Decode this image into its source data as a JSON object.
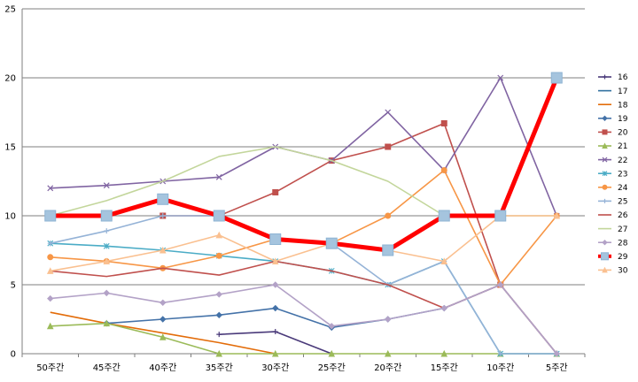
{
  "chart_data": {
    "type": "line",
    "categories": [
      "50주간",
      "45주간",
      "40주간",
      "35주간",
      "30주간",
      "25주간",
      "20주간",
      "15주간",
      "10주간",
      "5주간"
    ],
    "ylim": [
      0,
      25
    ],
    "yticks": [
      "0",
      "5",
      "10",
      "15",
      "20",
      "25"
    ],
    "grid": "horizontal",
    "legend_position": "right",
    "series": [
      {
        "name": "16",
        "color": "#4a3a7a",
        "marker": "plus",
        "values": [
          null,
          null,
          null,
          1.4,
          1.6,
          0,
          null,
          null,
          null,
          null
        ]
      },
      {
        "name": "17",
        "color": "#2f6f9f",
        "marker": "none",
        "values": [
          null,
          null,
          null,
          null,
          null,
          null,
          null,
          null,
          null,
          null
        ]
      },
      {
        "name": "18",
        "color": "#e36c09",
        "marker": "none",
        "values": [
          3.0,
          2.2,
          1.5,
          0.8,
          0,
          null,
          null,
          null,
          null,
          null
        ]
      },
      {
        "name": "19",
        "color": "#4472a8",
        "marker": "diamond",
        "values": [
          null,
          2.2,
          2.5,
          2.8,
          3.3,
          1.9,
          2.5,
          3.3,
          5.0,
          0
        ]
      },
      {
        "name": "20",
        "color": "#c0504d",
        "marker": "square",
        "values": [
          null,
          null,
          10.0,
          10.0,
          11.7,
          14.0,
          15.0,
          16.7,
          5.0,
          null
        ]
      },
      {
        "name": "21",
        "color": "#9bbb59",
        "marker": "triangle",
        "values": [
          2.0,
          2.2,
          1.2,
          0,
          0,
          0,
          0,
          0,
          0,
          0
        ]
      },
      {
        "name": "22",
        "color": "#8064a2",
        "marker": "x",
        "values": [
          12.0,
          12.2,
          12.5,
          12.8,
          15.0,
          14.0,
          17.5,
          13.3,
          20.0,
          10.0
        ]
      },
      {
        "name": "23",
        "color": "#4bacc6",
        "marker": "star",
        "values": [
          8.0,
          7.8,
          7.5,
          7.1,
          6.7,
          6.0,
          5.0,
          6.7,
          0,
          0
        ]
      },
      {
        "name": "24",
        "color": "#f79646",
        "marker": "circle",
        "values": [
          7.0,
          6.7,
          6.2,
          7.1,
          8.3,
          8.0,
          10.0,
          13.3,
          5.0,
          10.0
        ]
      },
      {
        "name": "25",
        "color": "#95b3d7",
        "marker": "plus",
        "values": [
          8.0,
          8.9,
          10.0,
          10.0,
          8.3,
          8.0,
          5.0,
          6.7,
          0,
          0
        ]
      },
      {
        "name": "26",
        "color": "#c0504d",
        "marker": "none",
        "values": [
          6.0,
          5.6,
          6.2,
          5.7,
          6.7,
          6.0,
          5.0,
          3.3,
          5.0,
          0
        ]
      },
      {
        "name": "27",
        "color": "#c3d69b",
        "marker": "none",
        "values": [
          10.0,
          11.1,
          12.5,
          14.3,
          15.0,
          14.0,
          12.5,
          10.0,
          10.0,
          10.0
        ]
      },
      {
        "name": "28",
        "color": "#b3a2c7",
        "marker": "diamond",
        "values": [
          4.0,
          4.4,
          3.7,
          4.3,
          5.0,
          2.0,
          2.5,
          3.3,
          5.0,
          0
        ]
      },
      {
        "name": "29",
        "color": "#ff0000",
        "marker": "square-big",
        "values": [
          10.0,
          10.0,
          11.2,
          10.0,
          8.3,
          8.0,
          7.5,
          10.0,
          10.0,
          20.0
        ]
      },
      {
        "name": "30",
        "color": "#fac090",
        "marker": "triangle",
        "values": [
          6.0,
          6.7,
          7.5,
          8.6,
          6.7,
          8.0,
          7.5,
          6.7,
          10.0,
          10.0
        ]
      }
    ]
  }
}
